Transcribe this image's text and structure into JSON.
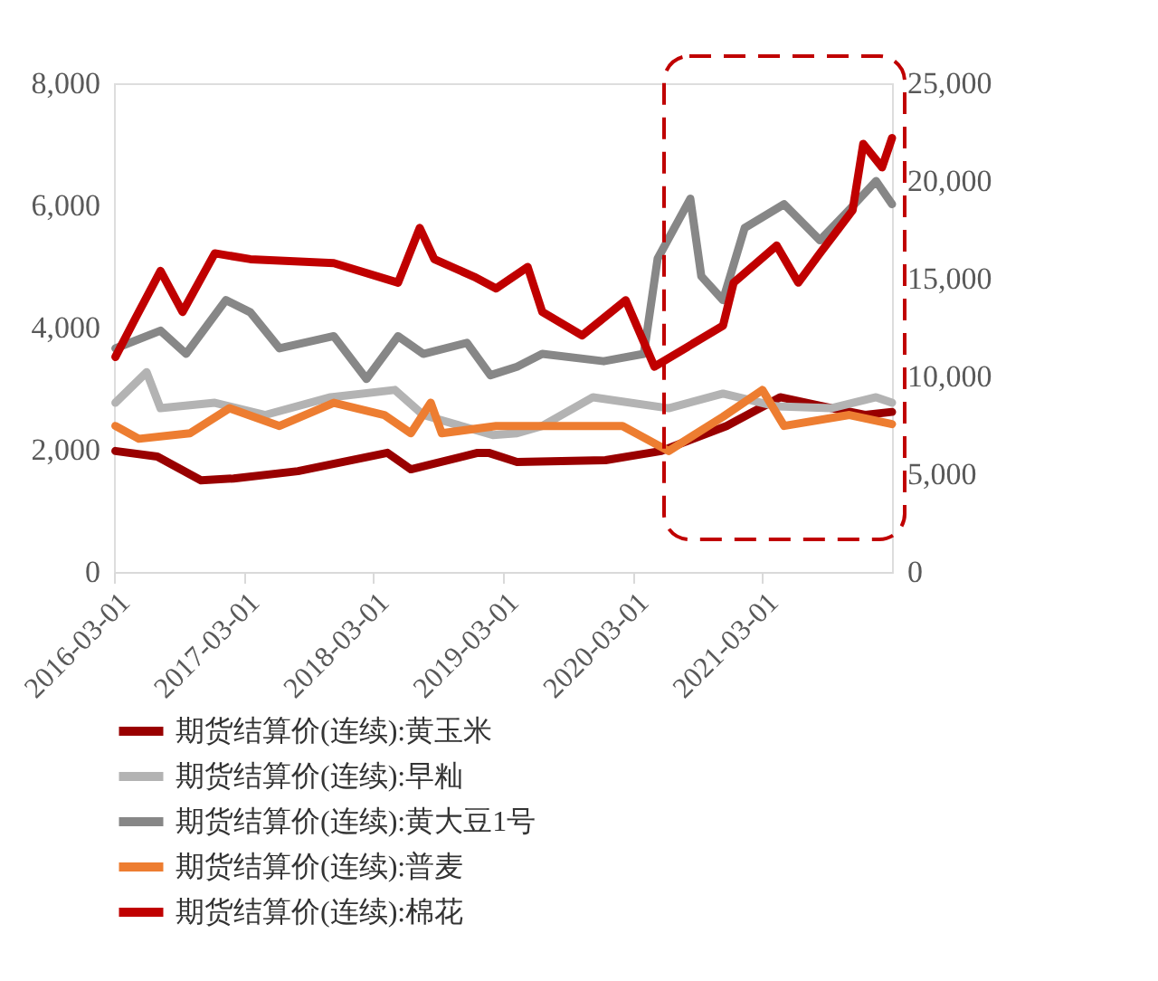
{
  "chart_data": {
    "type": "line",
    "legend": "bottom",
    "grid": false,
    "marker": "none",
    "line_style": "solid",
    "xlim": [
      "2016-03-01",
      "2022-03-01"
    ],
    "xticks": [
      "2016-03-01",
      "2017-03-01",
      "2018-03-01",
      "2019-03-01",
      "2020-03-01",
      "2021-03-01"
    ],
    "ylim": [
      0,
      8000
    ],
    "yticks": [
      0,
      {
        "value": 2000,
        "label": "2,000"
      },
      {
        "value": 4000,
        "label": "4,000"
      },
      {
        "value": 6000,
        "label": "6,000"
      },
      {
        "value": 8000,
        "label": "8,000"
      }
    ],
    "y2lim": [
      0,
      25000
    ],
    "y2ticks": [
      0,
      {
        "value": 5000,
        "label": "5,000"
      },
      {
        "value": 10000,
        "label": "10,000"
      },
      {
        "value": 15000,
        "label": "15,000"
      },
      {
        "value": 20000,
        "label": "20,000"
      },
      {
        "value": 25000,
        "label": "25,000"
      }
    ],
    "series": [
      {
        "name": "期货结算价(连续):黄玉米",
        "color": "#990000",
        "x": [
          "2016-03-05",
          "2016-07-01",
          "2016-11-01",
          "2017-02-01",
          "2017-08-01",
          "2018-04-10",
          "2018-06-15",
          "2018-12-20",
          "2019-01-20",
          "2019-04-10",
          "2019-12-15",
          "2020-05-20",
          "2020-11-20",
          "2021-04-20",
          "2021-08-20",
          "2021-12-15",
          "2022-03-01"
        ],
        "values": [
          1980,
          1890,
          1500,
          1530,
          1650,
          1950,
          1680,
          1950,
          1950,
          1800,
          1830,
          1980,
          2390,
          2860,
          2710,
          2570,
          2620
        ]
      },
      {
        "name": "期货结算价(连续):早籼",
        "color": "#b3b3b3",
        "x": [
          "2016-03-05",
          "2016-06-01",
          "2016-07-10",
          "2016-12-10",
          "2017-05-01",
          "2017-11-01",
          "2018-05-01",
          "2018-07-20",
          "2019-02-01",
          "2019-04-10",
          "2019-06-20",
          "2019-11-10",
          "2020-06-10",
          "2020-11-10",
          "2021-04-10",
          "2021-09-10",
          "2022-01-15",
          "2022-03-01"
        ],
        "values": [
          2770,
          3270,
          2680,
          2770,
          2570,
          2860,
          2980,
          2570,
          2240,
          2270,
          2390,
          2860,
          2680,
          2920,
          2710,
          2680,
          2860,
          2770
        ]
      },
      {
        "name": "期货结算价(连续):黄大豆1号",
        "color": "#878787",
        "x": [
          "2016-03-05",
          "2016-07-10",
          "2016-09-20",
          "2017-01-10",
          "2017-03-20",
          "2017-06-10",
          "2017-11-10",
          "2018-02-10",
          "2018-05-10",
          "2018-07-20",
          "2018-11-20",
          "2019-01-25",
          "2019-04-10",
          "2019-06-20",
          "2019-12-10",
          "2020-04-01",
          "2020-05-10",
          "2020-08-10",
          "2020-09-10",
          "2020-11-10",
          "2021-01-10",
          "2021-05-01",
          "2021-08-10",
          "2021-11-01",
          "2022-01-15",
          "2022-03-01"
        ],
        "values": [
          3660,
          3950,
          3570,
          4450,
          4250,
          3660,
          3860,
          3160,
          3860,
          3570,
          3750,
          3220,
          3360,
          3570,
          3450,
          3570,
          5130,
          6110,
          4840,
          4450,
          5630,
          6020,
          5430,
          5930,
          6400,
          6020
        ]
      },
      {
        "name": "期货结算价(连续):普麦",
        "color": "#ed7d31",
        "x": [
          "2016-03-05",
          "2016-05-10",
          "2016-10-01",
          "2017-01-20",
          "2017-06-10",
          "2017-11-10",
          "2018-04-01",
          "2018-06-15",
          "2018-08-10",
          "2018-09-10",
          "2019-02-10",
          "2019-06-20",
          "2020-02-01",
          "2020-06-10",
          "2020-11-10",
          "2021-03-01",
          "2021-05-01",
          "2021-11-01",
          "2022-03-01"
        ],
        "values": [
          2390,
          2180,
          2270,
          2680,
          2390,
          2770,
          2570,
          2270,
          2770,
          2270,
          2390,
          2390,
          2390,
          1980,
          2540,
          2980,
          2390,
          2570,
          2420
        ]
      },
      {
        "name": "期货结算价(连续):棉花",
        "color": "#c00000",
        "axis": "y2",
        "x": [
          "2016-03-05",
          "2016-05-01",
          "2016-07-10",
          "2016-09-10",
          "2016-12-10",
          "2017-03-20",
          "2017-11-10",
          "2018-05-10",
          "2018-07-10",
          "2018-08-20",
          "2018-12-10",
          "2019-02-10",
          "2019-05-10",
          "2019-06-20",
          "2019-10-10",
          "2020-02-10",
          "2020-05-01",
          "2020-11-10",
          "2020-12-10",
          "2021-04-10",
          "2021-06-10",
          "2021-08-10",
          "2021-11-10",
          "2021-12-10",
          "2022-02-01",
          "2022-03-01"
        ],
        "values": [
          11000,
          13000,
          15400,
          13300,
          16300,
          16000,
          15800,
          14800,
          17600,
          16000,
          15100,
          14500,
          15600,
          13300,
          12100,
          13900,
          10500,
          12600,
          14800,
          16700,
          14800,
          16300,
          18500,
          21900,
          20700,
          22200
        ]
      }
    ]
  }
}
